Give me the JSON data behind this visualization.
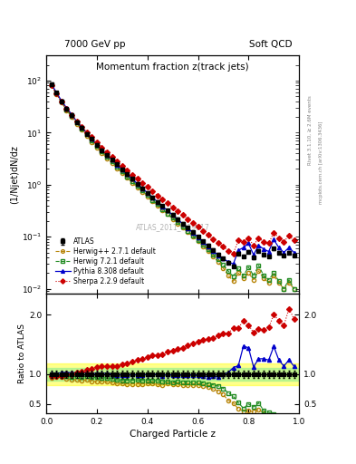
{
  "title_left": "7000 GeV pp",
  "title_right": "Soft QCD",
  "plot_title": "Momentum fraction z(track jets)",
  "xlabel": "Charged Particle z",
  "ylabel_main": "(1/Njet)dN/dz",
  "ylabel_ratio": "Ratio to ATLAS",
  "right_label_top": "Rivet 3.1.10, ≥ 2.6M events",
  "right_label_bottom": "mcplots.cern.ch [arXiv:1306.3436]",
  "watermark": "ATLAS_2011_I919017",
  "legend": [
    "ATLAS",
    "Herwig++ 2.7.1 default",
    "Herwig 7.2.1 default",
    "Pythia 8.308 default",
    "Sherpa 2.2.9 default"
  ],
  "z_values": [
    0.02,
    0.04,
    0.06,
    0.08,
    0.1,
    0.12,
    0.14,
    0.16,
    0.18,
    0.2,
    0.22,
    0.24,
    0.26,
    0.28,
    0.3,
    0.32,
    0.34,
    0.36,
    0.38,
    0.4,
    0.42,
    0.44,
    0.46,
    0.48,
    0.5,
    0.52,
    0.54,
    0.56,
    0.58,
    0.6,
    0.62,
    0.64,
    0.66,
    0.68,
    0.7,
    0.72,
    0.74,
    0.76,
    0.78,
    0.8,
    0.82,
    0.84,
    0.86,
    0.88,
    0.9,
    0.92,
    0.94,
    0.96,
    0.98
  ],
  "atlas_y": [
    85,
    58,
    40,
    29,
    22,
    16,
    12.5,
    9.5,
    7.5,
    5.8,
    4.6,
    3.7,
    3.0,
    2.45,
    1.98,
    1.6,
    1.3,
    1.05,
    0.86,
    0.7,
    0.57,
    0.47,
    0.39,
    0.32,
    0.265,
    0.218,
    0.18,
    0.148,
    0.122,
    0.1,
    0.082,
    0.068,
    0.056,
    0.046,
    0.038,
    0.032,
    0.027,
    0.048,
    0.042,
    0.052,
    0.04,
    0.054,
    0.046,
    0.042,
    0.06,
    0.05,
    0.044,
    0.05,
    0.044
  ],
  "herwig_pp_y": [
    80,
    55,
    38,
    27,
    20,
    14.5,
    11.2,
    8.6,
    6.6,
    5.1,
    4.05,
    3.22,
    2.58,
    2.07,
    1.67,
    1.34,
    1.09,
    0.88,
    0.72,
    0.59,
    0.48,
    0.39,
    0.32,
    0.27,
    0.22,
    0.18,
    0.148,
    0.122,
    0.1,
    0.082,
    0.066,
    0.053,
    0.042,
    0.033,
    0.025,
    0.018,
    0.014,
    0.02,
    0.016,
    0.02,
    0.015,
    0.022,
    0.016,
    0.013,
    0.018,
    0.013,
    0.01,
    0.013,
    0.01
  ],
  "herwig7_y": [
    83,
    57,
    39,
    28,
    21,
    15.5,
    12,
    9.2,
    7.1,
    5.5,
    4.35,
    3.47,
    2.78,
    2.22,
    1.78,
    1.44,
    1.17,
    0.95,
    0.77,
    0.63,
    0.51,
    0.42,
    0.34,
    0.28,
    0.23,
    0.19,
    0.156,
    0.128,
    0.105,
    0.086,
    0.07,
    0.057,
    0.046,
    0.037,
    0.029,
    0.022,
    0.017,
    0.025,
    0.018,
    0.026,
    0.018,
    0.028,
    0.018,
    0.015,
    0.02,
    0.014,
    0.01,
    0.015,
    0.01
  ],
  "pythia8_y": [
    86,
    59,
    41,
    30,
    22.5,
    16.5,
    12.8,
    9.8,
    7.6,
    5.9,
    4.7,
    3.75,
    3.02,
    2.43,
    1.96,
    1.58,
    1.29,
    1.04,
    0.85,
    0.7,
    0.57,
    0.47,
    0.38,
    0.32,
    0.26,
    0.215,
    0.177,
    0.146,
    0.12,
    0.098,
    0.08,
    0.065,
    0.054,
    0.044,
    0.038,
    0.033,
    0.03,
    0.055,
    0.062,
    0.075,
    0.045,
    0.068,
    0.058,
    0.052,
    0.088,
    0.062,
    0.05,
    0.062,
    0.05
  ],
  "sherpa_y": [
    82,
    56,
    39,
    29,
    22,
    16.5,
    13,
    10.2,
    8.2,
    6.5,
    5.2,
    4.2,
    3.4,
    2.8,
    2.3,
    1.9,
    1.57,
    1.3,
    1.08,
    0.9,
    0.75,
    0.62,
    0.52,
    0.44,
    0.37,
    0.31,
    0.26,
    0.22,
    0.185,
    0.155,
    0.13,
    0.108,
    0.09,
    0.076,
    0.064,
    0.054,
    0.048,
    0.085,
    0.08,
    0.095,
    0.068,
    0.095,
    0.08,
    0.075,
    0.12,
    0.095,
    0.08,
    0.105,
    0.085
  ],
  "ylim_main": [
    0.008,
    300
  ],
  "ylim_ratio": [
    0.35,
    2.35
  ],
  "colors": {
    "atlas": "#000000",
    "herwig_pp": "#b8860b",
    "herwig7": "#228b22",
    "pythia8": "#0000cc",
    "sherpa": "#cc0000"
  },
  "band_yellow": [
    0.82,
    1.18
  ],
  "band_green": [
    0.9,
    1.1
  ]
}
